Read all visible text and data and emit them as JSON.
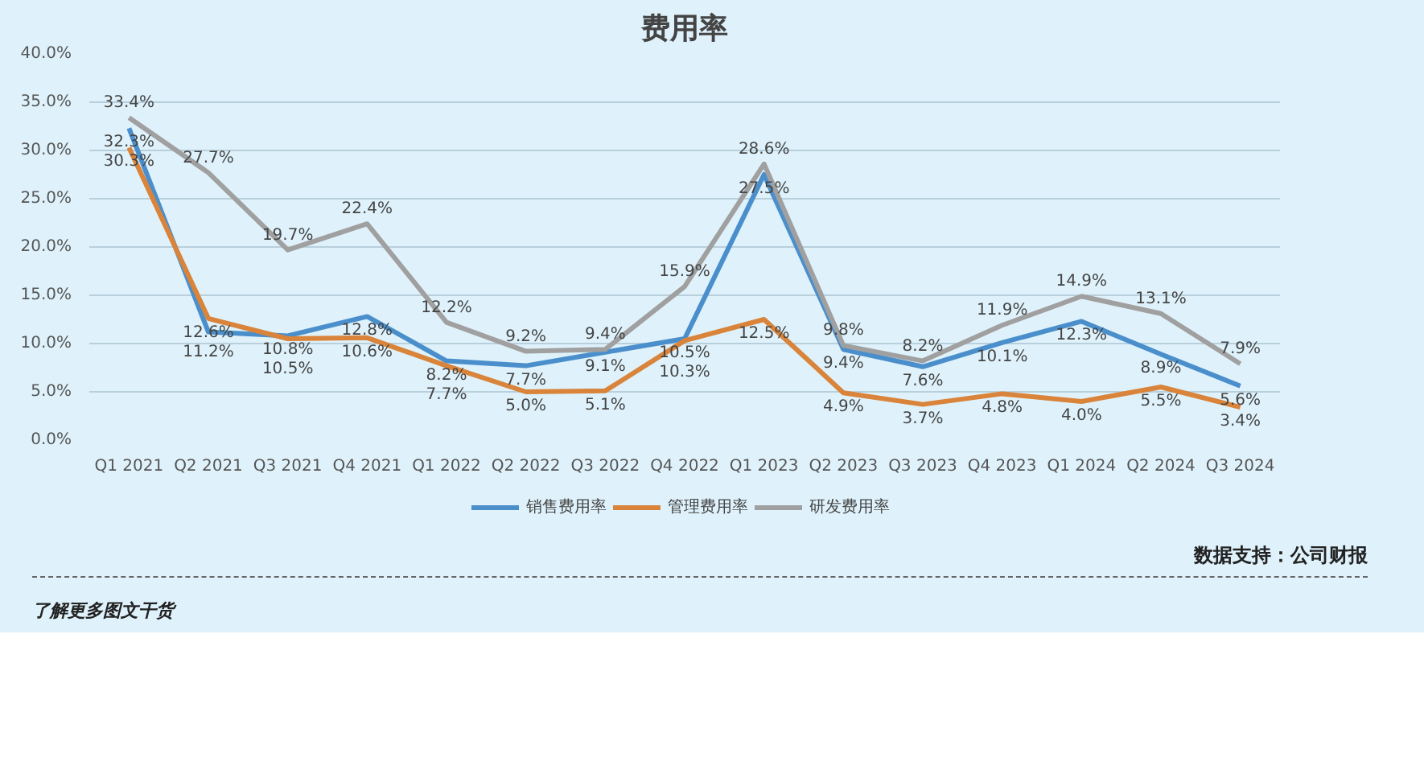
{
  "chart_data": {
    "type": "line",
    "title": "费用率",
    "categories": [
      "Q1 2021",
      "Q2 2021",
      "Q3 2021",
      "Q4 2021",
      "Q1 2022",
      "Q2 2022",
      "Q3 2022",
      "Q4 2022",
      "Q1 2023",
      "Q2 2023",
      "Q3 2023",
      "Q4 2023",
      "Q1 2024",
      "Q2 2024",
      "Q3 2024"
    ],
    "series": [
      {
        "name": "销售费用率",
        "color": "#4a8fcc",
        "values": [
          32.3,
          11.2,
          10.8,
          12.8,
          8.2,
          7.7,
          9.1,
          10.5,
          27.5,
          9.4,
          7.6,
          10.1,
          12.3,
          8.9,
          5.6
        ],
        "value_labels": [
          "32.3%",
          "11.2%",
          "10.8%",
          "12.8%",
          "8.2%",
          "7.7%",
          "9.1%",
          "10.5%",
          "27.5%",
          "9.4%",
          "7.6%",
          "10.1%",
          "12.3%",
          "8.9%",
          "5.6%"
        ]
      },
      {
        "name": "管理费用率",
        "color": "#d9843a",
        "values": [
          30.3,
          12.6,
          10.5,
          10.6,
          7.7,
          5.0,
          5.1,
          10.3,
          12.5,
          4.9,
          3.7,
          4.8,
          4.0,
          5.5,
          3.4
        ],
        "value_labels": [
          "30.3%",
          "12.6%",
          "10.5%",
          "10.6%",
          "7.7%",
          "5.0%",
          "5.1%",
          "10.3%",
          "12.5%",
          "4.9%",
          "3.7%",
          "4.8%",
          "4.0%",
          "5.5%",
          "3.4%"
        ]
      },
      {
        "name": "研发费用率",
        "color": "#a0a0a0",
        "values": [
          33.4,
          27.7,
          19.7,
          22.4,
          12.2,
          9.2,
          9.4,
          15.9,
          28.6,
          9.8,
          8.2,
          11.9,
          14.9,
          13.1,
          7.9
        ],
        "value_labels": [
          "33.4%",
          "27.7%",
          "19.7%",
          "22.4%",
          "12.2%",
          "9.2%",
          "9.4%",
          "15.9%",
          "28.6%",
          "9.8%",
          "8.2%",
          "11.9%",
          "14.9%",
          "13.1%",
          "7.9%"
        ]
      }
    ],
    "ylim": [
      0,
      40
    ],
    "yticks": [
      {
        "value": 0,
        "label": "0.0%"
      },
      {
        "value": 5,
        "label": "5.0%"
      },
      {
        "value": 10,
        "label": "10.0%"
      },
      {
        "value": 15,
        "label": "15.0%"
      },
      {
        "value": 20,
        "label": "20.0%"
      },
      {
        "value": 25,
        "label": "25.0%"
      },
      {
        "value": 30,
        "label": "30.0%"
      },
      {
        "value": 35,
        "label": "35.0%"
      },
      {
        "value": 40,
        "label": "40.0%"
      }
    ],
    "grid": "y",
    "legend": "bottom",
    "marker": "none",
    "line_style": "solid",
    "annotations": [
      "数据支持：公司财报",
      "了解更多图文干货"
    ]
  }
}
